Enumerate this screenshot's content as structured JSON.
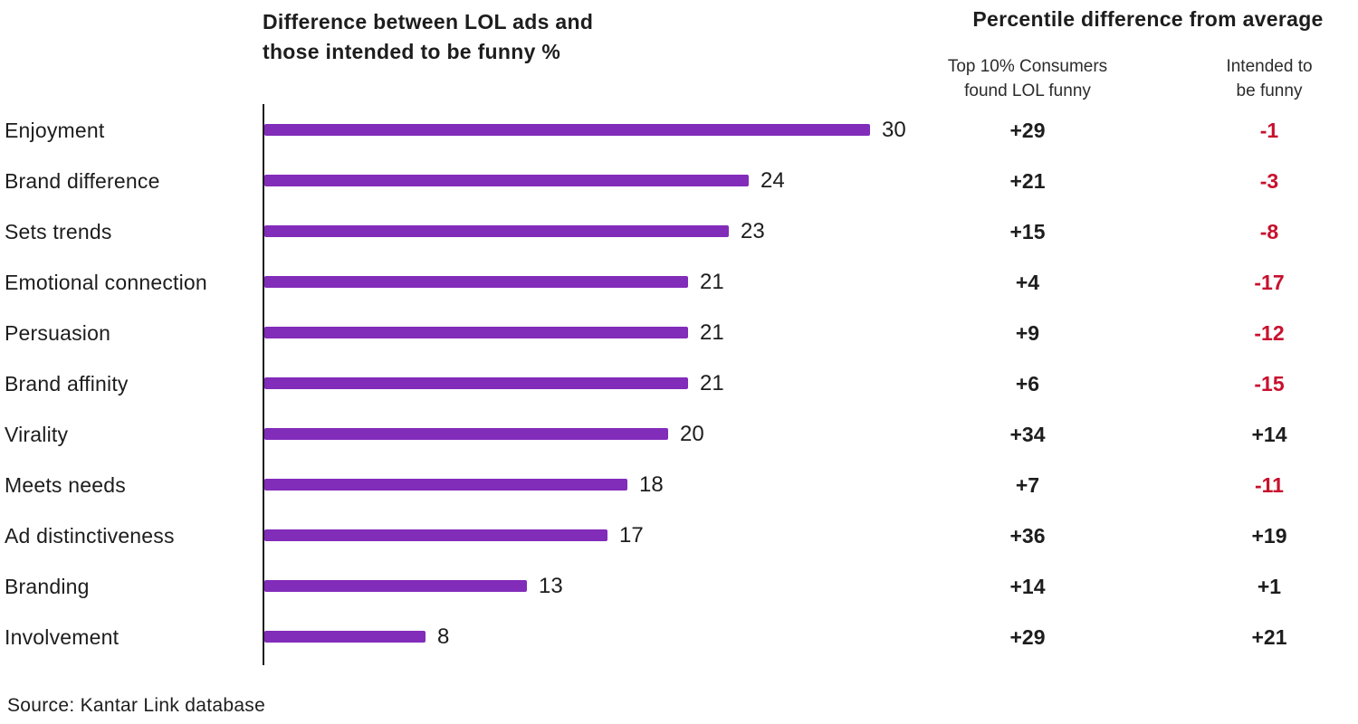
{
  "titles": {
    "left_line1": "Difference between LOL ads and",
    "left_line2": "those intended to be funny %",
    "right": "Percentile difference from average"
  },
  "columns": {
    "col1_line1": "Top 10% Consumers",
    "col1_line2": "found LOL funny",
    "col2_line1": "Intended to",
    "col2_line2": "be funny"
  },
  "source": "Source: Kantar Link database",
  "colors": {
    "bar": "#822cba",
    "positive_text": "#1d1d1d",
    "negative_text": "#c8102e",
    "axis": "#1d1d1d"
  },
  "chart_data": {
    "type": "bar",
    "orientation": "horizontal",
    "title": "Difference between LOL ads and those intended to be funny %",
    "subtitle_right": "Percentile difference from average",
    "categories": [
      "Enjoyment",
      "Brand difference",
      "Sets trends",
      "Emotional connection",
      "Persuasion",
      "Brand affinity",
      "Virality",
      "Meets needs",
      "Ad distinctiveness",
      "Branding",
      "Involvement"
    ],
    "series": [
      {
        "name": "Difference between LOL ads and those intended to be funny %",
        "values": [
          30,
          24,
          23,
          21,
          21,
          21,
          20,
          18,
          17,
          13,
          8
        ]
      },
      {
        "name": "Top 10% Consumers found LOL funny",
        "values": [
          "+29",
          "+21",
          "+15",
          "+4",
          "+9",
          "+6",
          "+34",
          "+7",
          "+36",
          "+14",
          "+29"
        ]
      },
      {
        "name": "Intended to be funny",
        "values": [
          "-1",
          "-3",
          "-8",
          "-17",
          "-12",
          "-15",
          "+14",
          "-11",
          "+19",
          "+1",
          "+21"
        ]
      }
    ],
    "xlim": [
      0,
      30
    ],
    "grid": false,
    "legend": false,
    "bar_labels_shown": true,
    "source": "Source: Kantar Link database"
  }
}
